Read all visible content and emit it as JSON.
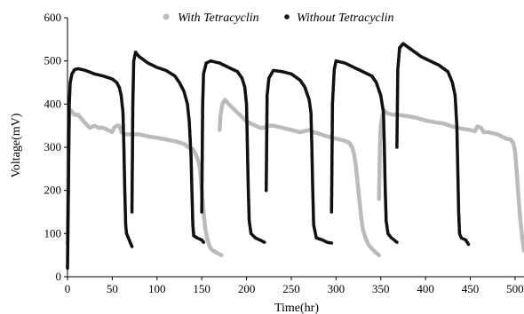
{
  "chart_data": {
    "type": "scatter",
    "title": "",
    "xlabel": "Time(hr)",
    "ylabel": "Voltage(mV)",
    "xlim": [
      0,
      510
    ],
    "ylim": [
      0,
      600
    ],
    "xticks": [
      "0",
      "50",
      "100",
      "150",
      "200",
      "250",
      "300",
      "350",
      "400",
      "450",
      "500"
    ],
    "yticks": [
      "0",
      "100",
      "200",
      "300",
      "400",
      "500",
      "600"
    ],
    "grid": false,
    "legend_position": "top",
    "series": [
      {
        "name": "With Tetracyclin",
        "color": "#bbbbbb",
        "marker": "circle",
        "segments": [
          [
            [
              0,
              75
            ],
            [
              1,
              320
            ],
            [
              2,
              375
            ],
            [
              4,
              385
            ],
            [
              8,
              375
            ],
            [
              12,
              375
            ],
            [
              16,
              365
            ],
            [
              20,
              355
            ],
            [
              25,
              345
            ],
            [
              30,
              350
            ],
            [
              35,
              345
            ],
            [
              40,
              345
            ],
            [
              45,
              340
            ],
            [
              50,
              335
            ],
            [
              52,
              345
            ],
            [
              55,
              350
            ],
            [
              58,
              350
            ],
            [
              60,
              335
            ],
            [
              65,
              330
            ],
            [
              70,
              330
            ],
            [
              80,
              330
            ],
            [
              90,
              325
            ],
            [
              100,
              322
            ],
            [
              110,
              318
            ],
            [
              120,
              314
            ],
            [
              130,
              308
            ],
            [
              135,
              300
            ],
            [
              140,
              295
            ],
            [
              143,
              285
            ],
            [
              146,
              270
            ],
            [
              148,
              250
            ],
            [
              150,
              200
            ],
            [
              152,
              150
            ],
            [
              154,
              110
            ],
            [
              156,
              90
            ],
            [
              158,
              75
            ],
            [
              160,
              65
            ],
            [
              163,
              60
            ],
            [
              167,
              55
            ],
            [
              172,
              50
            ]
          ],
          [
            [
              170,
              340
            ],
            [
              171,
              375
            ],
            [
              173,
              400
            ],
            [
              176,
              410
            ],
            [
              180,
              400
            ],
            [
              185,
              390
            ],
            [
              190,
              380
            ],
            [
              195,
              370
            ],
            [
              200,
              360
            ],
            [
              205,
              355
            ],
            [
              210,
              350
            ],
            [
              215,
              345
            ],
            [
              220,
              345
            ],
            [
              225,
              350
            ],
            [
              230,
              350
            ],
            [
              240,
              345
            ],
            [
              250,
              340
            ],
            [
              260,
              335
            ],
            [
              270,
              340
            ],
            [
              275,
              335
            ],
            [
              280,
              332
            ],
            [
              290,
              325
            ],
            [
              300,
              320
            ],
            [
              310,
              315
            ],
            [
              315,
              310
            ],
            [
              318,
              300
            ],
            [
              320,
              285
            ],
            [
              322,
              260
            ],
            [
              324,
              220
            ],
            [
              326,
              180
            ],
            [
              328,
              140
            ],
            [
              330,
              110
            ],
            [
              333,
              90
            ],
            [
              336,
              75
            ],
            [
              340,
              65
            ],
            [
              345,
              55
            ],
            [
              348,
              50
            ]
          ],
          [
            [
              348,
              180
            ],
            [
              349,
              300
            ],
            [
              350,
              350
            ],
            [
              352,
              375
            ],
            [
              354,
              385
            ],
            [
              358,
              378
            ],
            [
              365,
              375
            ],
            [
              370,
              375
            ],
            [
              380,
              372
            ],
            [
              390,
              368
            ],
            [
              400,
              362
            ],
            [
              410,
              358
            ],
            [
              420,
              355
            ],
            [
              430,
              348
            ],
            [
              440,
              343
            ],
            [
              450,
              340
            ],
            [
              455,
              337
            ],
            [
              458,
              348
            ],
            [
              462,
              345
            ],
            [
              465,
              335
            ],
            [
              470,
              335
            ],
            [
              480,
              330
            ],
            [
              490,
              320
            ],
            [
              495,
              318
            ],
            [
              498,
              310
            ],
            [
              500,
              290
            ],
            [
              502,
              240
            ],
            [
              504,
              180
            ],
            [
              506,
              130
            ],
            [
              508,
              90
            ],
            [
              510,
              60
            ]
          ]
        ]
      },
      {
        "name": "Without Tetracyclin",
        "color": "#111111",
        "marker": "circle",
        "segments": [
          [
            [
              0,
              20
            ],
            [
              1,
              200
            ],
            [
              2,
              400
            ],
            [
              3,
              450
            ],
            [
              5,
              470
            ],
            [
              8,
              480
            ],
            [
              12,
              482
            ],
            [
              20,
              478
            ],
            [
              30,
              470
            ],
            [
              40,
              465
            ],
            [
              50,
              458
            ],
            [
              55,
              450
            ],
            [
              58,
              438
            ],
            [
              60,
              420
            ],
            [
              62,
              380
            ],
            [
              63,
              300
            ],
            [
              64,
              200
            ],
            [
              65,
              120
            ],
            [
              66,
              100
            ],
            [
              68,
              90
            ],
            [
              70,
              80
            ],
            [
              72,
              70
            ]
          ],
          [
            [
              72,
              150
            ],
            [
              73,
              400
            ],
            [
              74,
              500
            ],
            [
              76,
              520
            ],
            [
              80,
              510
            ],
            [
              90,
              495
            ],
            [
              100,
              485
            ],
            [
              110,
              478
            ],
            [
              120,
              465
            ],
            [
              125,
              450
            ],
            [
              130,
              430
            ],
            [
              134,
              400
            ],
            [
              136,
              360
            ],
            [
              138,
              280
            ],
            [
              139,
              200
            ],
            [
              140,
              120
            ],
            [
              141,
              95
            ],
            [
              145,
              90
            ],
            [
              150,
              85
            ],
            [
              152,
              80
            ]
          ],
          [
            [
              150,
              150
            ],
            [
              151,
              400
            ],
            [
              152,
              470
            ],
            [
              155,
              495
            ],
            [
              160,
              500
            ],
            [
              170,
              495
            ],
            [
              180,
              485
            ],
            [
              190,
              475
            ],
            [
              195,
              460
            ],
            [
              198,
              440
            ],
            [
              200,
              400
            ],
            [
              201,
              300
            ],
            [
              202,
              200
            ],
            [
              203,
              130
            ],
            [
              205,
              100
            ],
            [
              210,
              90
            ],
            [
              215,
              85
            ],
            [
              220,
              80
            ]
          ],
          [
            [
              222,
              200
            ],
            [
              223,
              420
            ],
            [
              225,
              460
            ],
            [
              230,
              478
            ],
            [
              240,
              475
            ],
            [
              250,
              470
            ],
            [
              260,
              455
            ],
            [
              265,
              440
            ],
            [
              270,
              410
            ],
            [
              272,
              380
            ],
            [
              273,
              300
            ],
            [
              274,
              200
            ],
            [
              275,
              120
            ],
            [
              278,
              90
            ],
            [
              285,
              85
            ],
            [
              290,
              80
            ],
            [
              295,
              78
            ]
          ],
          [
            [
              295,
              150
            ],
            [
              296,
              400
            ],
            [
              298,
              480
            ],
            [
              300,
              500
            ],
            [
              310,
              495
            ],
            [
              320,
              485
            ],
            [
              330,
              475
            ],
            [
              340,
              465
            ],
            [
              345,
              450
            ],
            [
              350,
              420
            ],
            [
              353,
              380
            ],
            [
              354,
              300
            ],
            [
              355,
              200
            ],
            [
              356,
              130
            ],
            [
              358,
              100
            ],
            [
              362,
              90
            ],
            [
              365,
              85
            ],
            [
              368,
              80
            ]
          ],
          [
            [
              368,
              300
            ],
            [
              369,
              480
            ],
            [
              371,
              530
            ],
            [
              375,
              540
            ],
            [
              385,
              525
            ],
            [
              395,
              510
            ],
            [
              405,
              500
            ],
            [
              415,
              490
            ],
            [
              425,
              475
            ],
            [
              430,
              450
            ],
            [
              433,
              420
            ],
            [
              435,
              350
            ],
            [
              436,
              250
            ],
            [
              437,
              150
            ],
            [
              438,
              100
            ],
            [
              440,
              90
            ],
            [
              445,
              85
            ],
            [
              448,
              75
            ]
          ]
        ]
      }
    ]
  }
}
